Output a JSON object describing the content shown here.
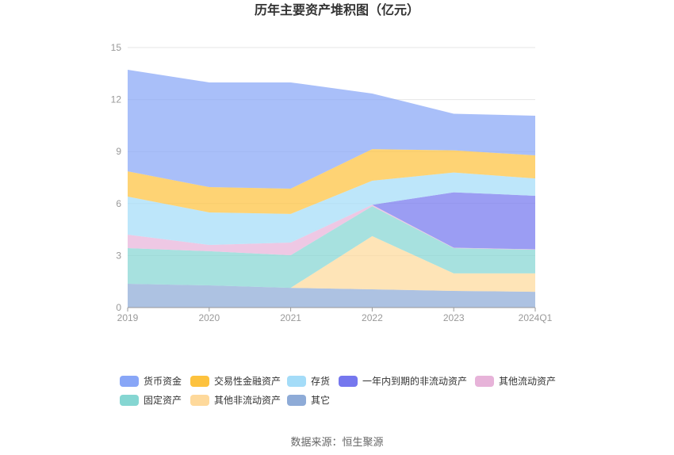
{
  "source": "数据来源：恒生聚源",
  "chart_data": {
    "type": "area",
    "stacked": true,
    "title": "历年主要资产堆积图（亿元）",
    "categories": [
      "2019",
      "2020",
      "2021",
      "2022",
      "2023",
      "2024Q1"
    ],
    "ylim": [
      0,
      15
    ],
    "yticks": [
      0,
      3,
      6,
      9,
      12,
      15
    ],
    "grid": true,
    "legend_position": "bottom",
    "series": [
      {
        "name": "货币资金",
        "color": "#88a6f7",
        "values": [
          5.86,
          6.04,
          6.13,
          3.21,
          2.11,
          2.29
        ]
      },
      {
        "name": "交易性金融资产",
        "color": "#fdc23e",
        "values": [
          1.46,
          1.46,
          1.46,
          1.82,
          1.28,
          1.33
        ]
      },
      {
        "name": "存货",
        "color": "#a4dcf8",
        "values": [
          2.19,
          1.88,
          1.65,
          1.39,
          1.14,
          1.0
        ]
      },
      {
        "name": "一年内到期的非流动资产",
        "color": "#7577ee",
        "values": [
          0,
          0,
          0,
          0,
          3.2,
          3.09
        ]
      },
      {
        "name": "其他流动资产",
        "color": "#e7b3d9",
        "values": [
          0.78,
          0.36,
          0.73,
          0.08,
          0.02,
          0.02
        ]
      },
      {
        "name": "固定资产",
        "color": "#85d6d2",
        "values": [
          2.06,
          1.97,
          1.88,
          1.73,
          1.46,
          1.37
        ]
      },
      {
        "name": "其他非流动资产",
        "color": "#fed99b",
        "values": [
          0,
          0,
          0,
          3.07,
          1.01,
          1.06
        ]
      },
      {
        "name": "其它",
        "color": "#8eabd7",
        "values": [
          1.37,
          1.28,
          1.14,
          1.05,
          0.96,
          0.91
        ]
      }
    ]
  }
}
